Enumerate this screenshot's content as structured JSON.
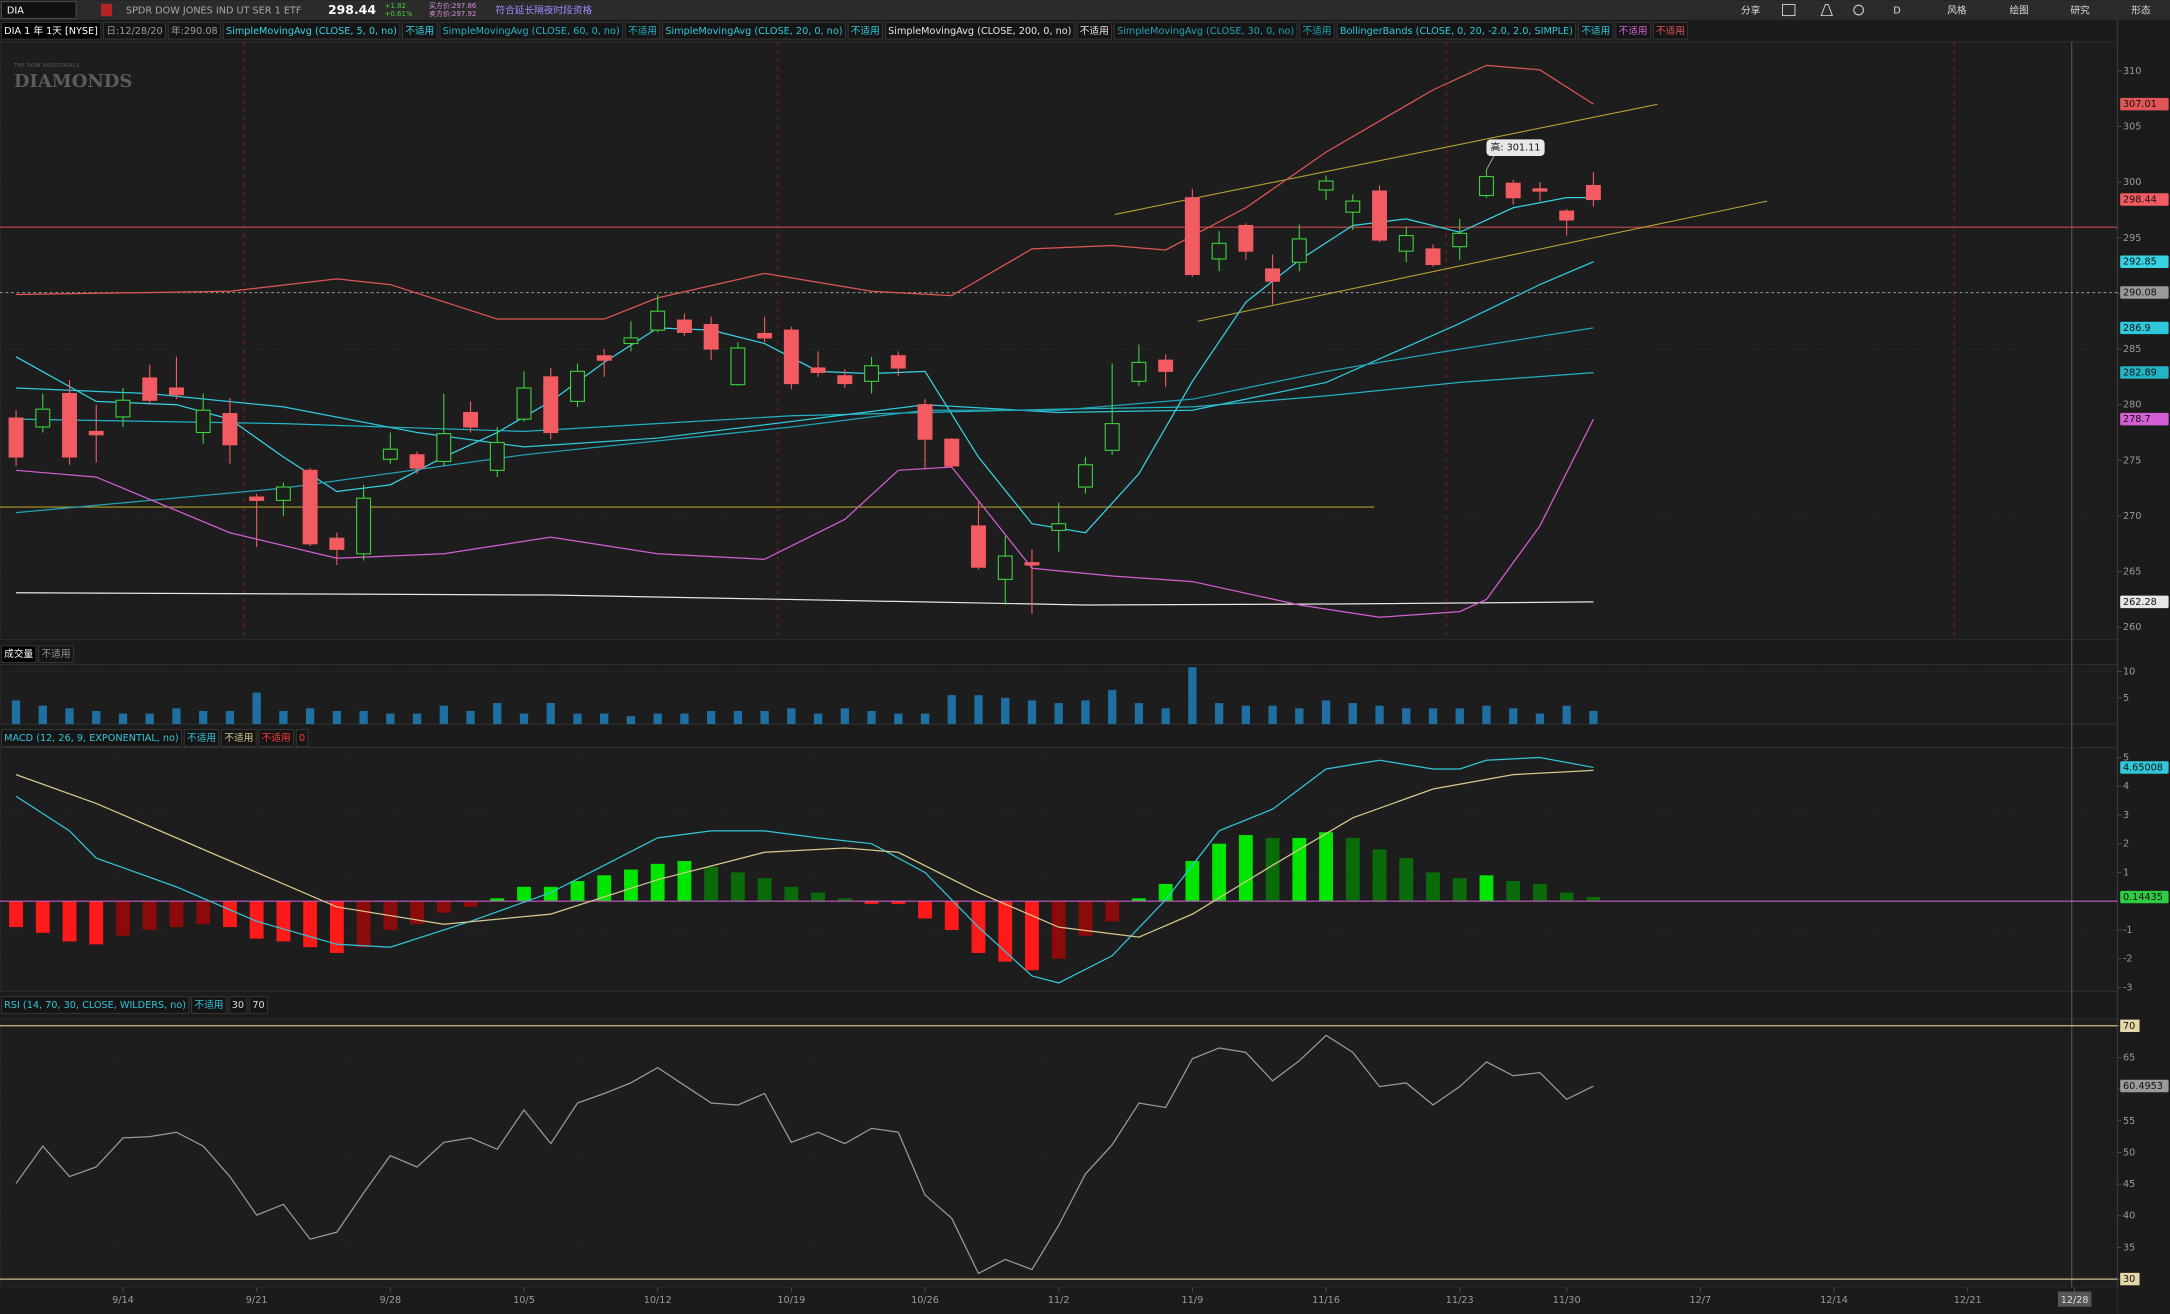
{
  "toolbar": {
    "symbol": "DIA",
    "description": "SPDR DOW JONES IND UT SER 1 ETF",
    "last": 298.44,
    "change": "+1.82",
    "change_pct": "+0.61%",
    "bid": "买方价:297.86",
    "ask": "卖方价:297.92",
    "extended": "符合延长隔夜时段资格",
    "buttons": [
      "分享",
      "D",
      "风格",
      "绘图",
      "研究",
      "形态"
    ]
  },
  "x_axis": {
    "xlim": [
      -0.6,
      78.6
    ],
    "xticks": [
      {
        "value": 4,
        "label": "9/14"
      },
      {
        "value": 9,
        "label": "9/21"
      },
      {
        "value": 14,
        "label": "9/28"
      },
      {
        "value": 19,
        "label": "10/5"
      },
      {
        "value": 24,
        "label": "10/12"
      },
      {
        "value": 29,
        "label": "10/19"
      },
      {
        "value": 34,
        "label": "10/26"
      },
      {
        "value": 39,
        "label": "11/2"
      },
      {
        "value": 44,
        "label": "11/9"
      },
      {
        "value": 49,
        "label": "11/16"
      },
      {
        "value": 54,
        "label": "11/23"
      },
      {
        "value": 58,
        "label": "11/30"
      },
      {
        "value": 63,
        "label": "12/7"
      },
      {
        "value": 68,
        "label": "12/14"
      },
      {
        "value": 73,
        "label": "12/21"
      },
      {
        "value": 77,
        "label": "12/28"
      }
    ]
  },
  "chart_data": [
    {
      "type": "candlestick",
      "header": {
        "symbol": "DIA 1 年 1天 [NYSE]",
        "day": "日:12/28/20",
        "year": "年:290.08"
      },
      "watermark": {
        "top": "THE DOW INDUSTRIALS",
        "main": "DIAMONDS"
      },
      "open": [
        278.8,
        278.0,
        281.0,
        277.6,
        278.9,
        282.4,
        281.5,
        277.5,
        279.2,
        271.7,
        271.4,
        274.1,
        268.0,
        266.6,
        275.1,
        275.5,
        274.9,
        279.3,
        274.1,
        278.7,
        282.5,
        280.3,
        284.4,
        285.5,
        286.7,
        287.6,
        287.2,
        281.8,
        286.4,
        286.7,
        283.3,
        282.6,
        282.1,
        284.4,
        280.0,
        276.9,
        269.1,
        264.3,
        265.8,
        268.7,
        272.6,
        275.9,
        282.1,
        284.0,
        298.6,
        293.1,
        296.1,
        292.2,
        292.8,
        299.3,
        297.3,
        299.2,
        293.8,
        294.0,
        294.2,
        298.8,
        299.9,
        299.4,
        297.4,
        299.7
      ],
      "high": [
        279.5,
        281.0,
        282.2,
        280.0,
        281.5,
        283.6,
        284.3,
        281.0,
        280.6,
        272.0,
        273.0,
        274.3,
        268.5,
        272.8,
        277.5,
        275.8,
        281.0,
        280.3,
        278.0,
        283.0,
        283.3,
        283.7,
        285.0,
        287.5,
        289.9,
        288.2,
        287.9,
        285.6,
        287.9,
        287.0,
        284.8,
        283.2,
        284.3,
        284.8,
        280.5,
        277.0,
        271.4,
        268.2,
        267.0,
        271.2,
        275.3,
        283.7,
        285.4,
        284.5,
        299.4,
        295.6,
        296.3,
        293.5,
        296.2,
        300.6,
        298.9,
        299.7,
        296.0,
        294.4,
        296.7,
        301.11,
        300.2,
        300.0,
        297.6,
        300.9
      ],
      "low": [
        274.5,
        277.5,
        274.6,
        274.8,
        278.0,
        280.0,
        280.5,
        276.5,
        274.7,
        267.2,
        270.0,
        267.3,
        265.6,
        266.0,
        274.7,
        273.8,
        274.5,
        277.5,
        273.5,
        278.5,
        276.9,
        279.8,
        282.5,
        284.8,
        286.5,
        286.2,
        284.0,
        281.7,
        285.6,
        281.4,
        282.5,
        281.5,
        281.0,
        282.6,
        274.2,
        274.3,
        265.2,
        262.0,
        261.2,
        266.8,
        272.0,
        275.5,
        281.7,
        281.6,
        291.5,
        292.0,
        293.0,
        289.0,
        292.0,
        298.4,
        295.7,
        294.6,
        292.8,
        292.4,
        293.0,
        298.6,
        298.0,
        298.3,
        295.2,
        297.8
      ],
      "close": [
        275.3,
        279.6,
        275.3,
        277.3,
        280.4,
        280.4,
        280.9,
        279.5,
        276.4,
        271.4,
        272.6,
        267.5,
        267.0,
        271.6,
        276.0,
        274.3,
        277.4,
        278.0,
        276.6,
        281.5,
        277.5,
        283.0,
        284.0,
        286.0,
        288.4,
        286.5,
        285.0,
        285.1,
        286.0,
        281.9,
        282.9,
        281.9,
        283.5,
        283.3,
        276.9,
        274.5,
        265.4,
        266.4,
        265.6,
        269.3,
        274.6,
        278.3,
        283.8,
        283.0,
        291.7,
        294.5,
        293.8,
        291.1,
        294.9,
        300.1,
        298.3,
        294.8,
        295.2,
        292.6,
        295.4,
        300.5,
        298.6,
        299.2,
        296.6,
        298.44
      ],
      "up_color": "#3ecf3e",
      "down_color": "#f25b61",
      "series": [
        {
          "name": "SimpleMovingAvg (CLOSE, 5, 0, no)",
          "status": "不适用",
          "color": "#38d3e3",
          "x": [
            0,
            3,
            6,
            8,
            10,
            12,
            14,
            16,
            18,
            20,
            22,
            24,
            26,
            28,
            30,
            32,
            34,
            36,
            38,
            40,
            42,
            44,
            46,
            48,
            50,
            52,
            54,
            56,
            58,
            59
          ],
          "values": [
            284.3,
            280.3,
            280.0,
            278.7,
            275.3,
            272.2,
            272.8,
            275.3,
            277.5,
            280.3,
            283.8,
            286.9,
            286.7,
            285.5,
            283.0,
            282.8,
            283.0,
            275.3,
            269.3,
            268.5,
            273.8,
            282.1,
            289.2,
            293.0,
            296.1,
            296.7,
            295.5,
            297.7,
            298.6,
            298.6
          ]
        },
        {
          "name": "SimpleMovingAvg (CLOSE, 60, 0, no)",
          "status": "不适用",
          "color": "#23b4c6",
          "x": [
            0,
            10,
            19,
            29,
            39,
            44,
            49,
            54,
            59
          ],
          "values": [
            278.7,
            278.3,
            277.6,
            279.0,
            279.6,
            279.8,
            280.8,
            282.0,
            282.89
          ]
        },
        {
          "name": "SimpleMovingAvg (CLOSE, 20, 0, no)",
          "status": "不适用",
          "color": "#2fc9dc",
          "x": [
            0,
            5,
            10,
            15,
            19,
            24,
            29,
            34,
            39,
            44,
            49,
            54,
            57,
            59
          ],
          "values": [
            281.5,
            281.0,
            279.8,
            277.5,
            276.2,
            277.0,
            278.5,
            280.0,
            279.3,
            279.5,
            282.0,
            287.3,
            290.8,
            292.85
          ]
        },
        {
          "name": "SimpleMovingAvg (CLOSE, 200, 0, no)",
          "status": "不适用",
          "color": "#e6e6e6",
          "x": [
            0,
            20,
            40,
            50,
            59
          ],
          "values": [
            263.1,
            262.9,
            262.0,
            262.1,
            262.28
          ]
        },
        {
          "name": "SimpleMovingAvg (CLOSE, 30, 0, no)",
          "status": "不适用",
          "color": "#1fa3b6",
          "x": [
            0,
            10,
            19,
            29,
            34,
            39,
            44,
            49,
            54,
            59
          ],
          "values": [
            270.3,
            272.5,
            275.5,
            278.0,
            279.5,
            279.5,
            280.5,
            283.0,
            285.0,
            286.9
          ]
        }
      ],
      "bollinger": {
        "name": "BollingerBands (CLOSE, 0, 20, -2.0, 2.0, SIMPLE)",
        "color": "#2fc9dc",
        "bands": [
          {
            "status": "不适用",
            "color": "#2fc9dc"
          },
          {
            "status": "不适用",
            "color": "#d45fd4",
            "x": [
              0,
              3,
              8,
              12,
              16,
              20,
              24,
              28,
              31,
              33,
              35,
              38,
              41,
              44,
              48,
              51,
              54,
              55,
              57,
              59
            ],
            "values": [
              274.1,
              273.5,
              268.5,
              266.2,
              266.6,
              268.1,
              266.6,
              266.1,
              269.7,
              274.1,
              274.4,
              265.3,
              264.6,
              264.1,
              262.0,
              260.9,
              261.4,
              262.5,
              269.1,
              278.7
            ]
          },
          {
            "status": "不适用",
            "color": "#e05656",
            "x": [
              0,
              8,
              12,
              14,
              18,
              22,
              24,
              28,
              32,
              35,
              38,
              41,
              43,
              46,
              49,
              53,
              55,
              57,
              59
            ],
            "values": [
              289.9,
              290.2,
              291.3,
              290.8,
              287.7,
              287.7,
              289.6,
              291.8,
              290.2,
              289.8,
              294.0,
              294.3,
              293.9,
              297.7,
              302.7,
              308.3,
              310.5,
              310.1,
              307.01
            ]
          }
        ]
      },
      "hlines": [
        {
          "value": 295.95,
          "color": "#c84848"
        },
        {
          "value": 290.08,
          "color": "#8a8a8a",
          "dash": true
        },
        {
          "value": 270.8,
          "color": "#b59a2a",
          "x": [
            -0.6,
            50.8
          ]
        }
      ],
      "trendlines": [
        {
          "x": [
            41.1,
            61.4
          ],
          "values": [
            297.1,
            307.0
          ],
          "color": "#b8a032"
        },
        {
          "x": [
            44.2,
            65.5
          ],
          "values": [
            287.5,
            298.3
          ],
          "color": "#b8a032"
        }
      ],
      "annotations": [
        {
          "text": "高: 301.11",
          "x": 55,
          "value": 301.11
        }
      ],
      "price_labels": [
        {
          "value": 307.01,
          "color": "#e05656"
        },
        {
          "value": 298.44,
          "color": "#f25b61"
        },
        {
          "value": 292.85,
          "color": "#38d3e3"
        },
        {
          "value": 290.08,
          "color": "#9a9a9a"
        },
        {
          "value": 286.9,
          "color": "#2fc9dc"
        },
        {
          "value": 282.89,
          "color": "#23b4c6"
        },
        {
          "value": 278.7,
          "color": "#d45fd4"
        },
        {
          "value": 262.28,
          "color": "#e6e6e6"
        }
      ],
      "ylim": [
        258.88,
        312.61
      ],
      "yticks": [
        260,
        265,
        270,
        275,
        280,
        285,
        290,
        295,
        300,
        305,
        310
      ],
      "grid": true
    },
    {
      "type": "bar",
      "title": "成交量",
      "status": "不适用",
      "color": "#1f6fa3",
      "values": [
        4.5,
        3.5,
        3,
        2.5,
        2,
        2,
        3,
        2.5,
        2.5,
        6,
        2.5,
        3,
        2.5,
        2.5,
        2,
        2,
        3.5,
        2.5,
        4,
        2,
        4,
        2,
        2,
        1.5,
        2,
        2,
        2.5,
        2.5,
        2.5,
        3,
        2,
        3,
        2.5,
        2,
        2,
        5.5,
        5.5,
        5,
        4.5,
        4,
        4.5,
        6.5,
        4,
        3,
        10.8,
        4,
        3.5,
        3.5,
        3,
        4.5,
        4,
        3.5,
        3,
        3,
        3,
        3.5,
        3,
        2,
        3.5,
        2.5
      ],
      "ylim": [
        0,
        11.3
      ],
      "yticks": [
        5,
        10
      ],
      "grid": true
    },
    {
      "type": "macd",
      "title": "MACD (12, 26, 9, EXPONENTIAL, no)",
      "series": [
        {
          "status": "不适用",
          "color": "#33c5d8",
          "x": [
            0,
            2,
            3,
            6,
            9,
            12,
            14,
            17,
            20,
            22,
            24,
            26,
            28,
            30,
            32,
            34,
            36,
            38,
            39,
            41,
            43,
            45,
            47,
            49,
            51,
            53,
            54,
            55,
            57,
            59
          ],
          "values": [
            3.65,
            2.45,
            1.5,
            0.5,
            -0.7,
            -1.5,
            -1.6,
            -0.7,
            0.3,
            1.25,
            2.2,
            2.45,
            2.45,
            2.2,
            2.0,
            1.0,
            -0.9,
            -2.6,
            -2.84,
            -1.9,
            0.05,
            2.45,
            3.2,
            4.6,
            4.9,
            4.6,
            4.6,
            4.9,
            5.0,
            4.65008
          ]
        },
        {
          "status": "不适用",
          "color": "#d8c88e",
          "x": [
            0,
            3,
            6,
            9,
            12,
            16,
            20,
            24,
            28,
            31,
            33,
            36,
            39,
            42,
            44,
            47,
            50,
            53,
            56,
            59
          ],
          "values": [
            4.4,
            3.4,
            2.2,
            1.0,
            -0.2,
            -0.8,
            -0.45,
            0.75,
            1.7,
            1.85,
            1.7,
            0.3,
            -0.9,
            -1.25,
            -0.45,
            1.25,
            2.9,
            3.9,
            4.4,
            4.55
          ]
        }
      ],
      "histogram": {
        "status": "不适用",
        "color": "#ff3b3b",
        "colors": {
          "pos_up": "#00e600",
          "pos_down": "#0b6b0b",
          "neg_down": "#ff1a1a",
          "neg_up": "#8b0a0a"
        },
        "values": [
          -0.9,
          -1.1,
          -1.4,
          -1.5,
          -1.2,
          -1.0,
          -0.9,
          -0.8,
          -0.9,
          -1.3,
          -1.4,
          -1.6,
          -1.8,
          -1.6,
          -1.0,
          -0.8,
          -0.4,
          -0.2,
          0.1,
          0.5,
          0.5,
          0.7,
          0.9,
          1.1,
          1.3,
          1.4,
          1.2,
          1.0,
          0.8,
          0.5,
          0.3,
          0.1,
          -0.1,
          -0.1,
          -0.6,
          -1.0,
          -1.8,
          -2.1,
          -2.4,
          -2.0,
          -1.2,
          -0.7,
          0.1,
          0.6,
          1.4,
          2.0,
          2.3,
          2.2,
          2.2,
          2.4,
          2.2,
          1.8,
          1.5,
          1.0,
          0.8,
          0.9,
          0.7,
          0.6,
          0.3,
          0.14435
        ]
      },
      "zero_line": {
        "value": 0,
        "color": "#c45ac4"
      },
      "price_labels": [
        {
          "value": 4.65008,
          "color": "#33c5d8"
        },
        {
          "value": 0.14435,
          "color": "#2ecc40"
        }
      ],
      "ylim": [
        -3.13,
        5.34
      ],
      "yticks": [
        -3,
        -2,
        -1,
        1,
        2,
        3,
        4,
        5
      ],
      "grid": true
    },
    {
      "type": "line",
      "title": "RSI (14, 70, 30, CLOSE, WILDERS, no)",
      "status": "不适用",
      "oversold": 30,
      "overbought": 70,
      "level_color": "#cdbd8c",
      "color": "#9a9a9a",
      "values": [
        45.1,
        51,
        46.2,
        47.7,
        52.3,
        52.5,
        53.2,
        51,
        46.2,
        40.1,
        41.8,
        36.3,
        37.4,
        43.6,
        49.5,
        47.7,
        51.6,
        52.3,
        50.5,
        56.7,
        51.4,
        57.8,
        59.3,
        61,
        63.4,
        60.6,
        57.8,
        57.5,
        59.3,
        51.6,
        53.2,
        51.4,
        53.8,
        53.2,
        43.3,
        39.6,
        30.9,
        33.1,
        31.5,
        38.5,
        46.6,
        51.2,
        57.8,
        57.1,
        64.8,
        66.5,
        65.8,
        61.3,
        64.5,
        68.5,
        65.8,
        60.4,
        61,
        57.5,
        60.4,
        64.3,
        62.1,
        62.6,
        58.4,
        60.4953
      ],
      "price_labels": [
        {
          "value": 60.4953,
          "color": "#9a9a9a"
        }
      ],
      "ylim": [
        28.69,
        71.09
      ],
      "yticks": [
        30,
        35,
        40,
        45,
        50,
        55,
        60,
        65,
        70
      ],
      "grid": true
    }
  ]
}
